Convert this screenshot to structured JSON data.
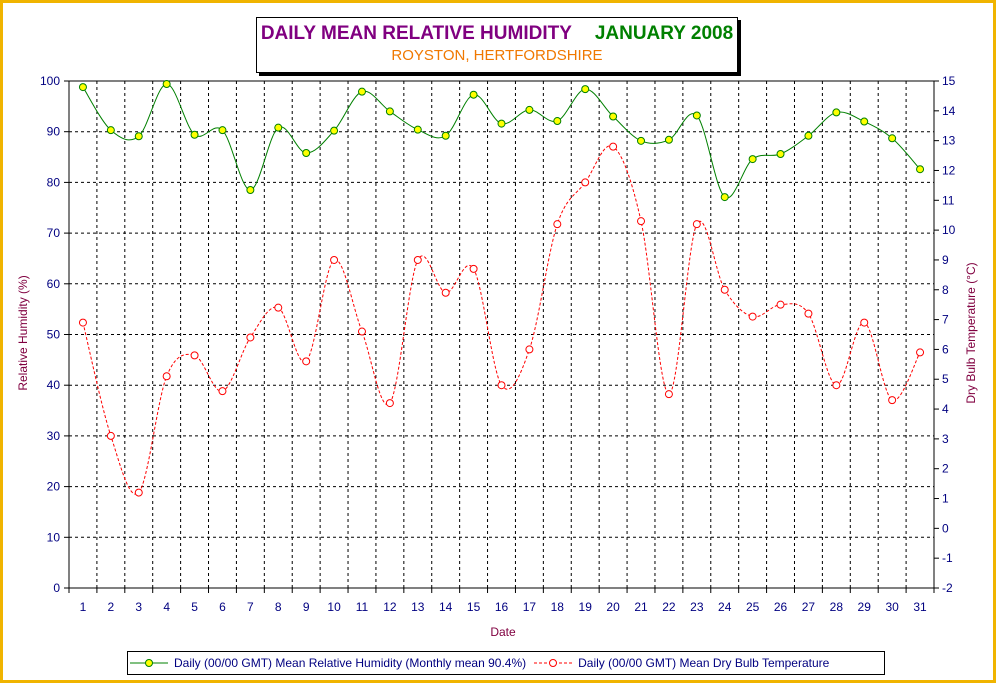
{
  "colors": {
    "frame": "#f0b400",
    "title": "#800080",
    "period": "#008000",
    "subtitle": "#f07800",
    "axis_text": "#000080",
    "axis_title": "#800040",
    "humidity_line": "#008000",
    "humidity_marker": "#ffff00",
    "temperature_line": "#ff0000"
  },
  "chart_data": {
    "type": "line",
    "title": "DAILY MEAN RELATIVE HUMIDITY",
    "title_period": "JANUARY 2008",
    "subtitle": "ROYSTON, HERTFORDSHIRE",
    "xlabel": "Date",
    "ylabel_left": "Relative Humidity (%)",
    "ylabel_right": "Dry Bulb Temperature (°C)",
    "x": [
      1,
      2,
      3,
      4,
      5,
      6,
      7,
      8,
      9,
      10,
      11,
      12,
      13,
      14,
      15,
      16,
      17,
      18,
      19,
      20,
      21,
      22,
      23,
      24,
      25,
      26,
      27,
      28,
      29,
      30,
      31
    ],
    "ylim_left": [
      0,
      100
    ],
    "yticks_left": [
      0,
      10,
      20,
      30,
      40,
      50,
      60,
      70,
      80,
      90,
      100
    ],
    "ylim_right": [
      -2,
      15
    ],
    "yticks_right": [
      -2,
      -1,
      0,
      1,
      2,
      3,
      4,
      5,
      6,
      7,
      8,
      9,
      10,
      11,
      12,
      13,
      14,
      15
    ],
    "grid": true,
    "legend_position": "bottom",
    "series": [
      {
        "name": "Daily (00/00 GMT) Mean Relative Humidity (Monthly mean 90.4%)",
        "axis": "left",
        "line_style": "solid",
        "values": [
          98.8,
          90.3,
          89.1,
          99.4,
          89.4,
          90.3,
          78.5,
          90.8,
          85.8,
          90.2,
          97.9,
          94.0,
          90.4,
          89.2,
          97.3,
          91.6,
          94.3,
          92.1,
          98.4,
          93.0,
          88.2,
          88.4,
          93.2,
          77.1,
          84.6,
          85.6,
          89.2,
          93.8,
          92.0,
          88.7,
          82.6
        ]
      },
      {
        "name": "Daily (00/00 GMT) Mean Dry Bulb Temperature",
        "axis": "right",
        "line_style": "dashed",
        "values": [
          6.9,
          3.1,
          1.2,
          5.1,
          5.8,
          4.6,
          6.4,
          7.4,
          5.6,
          9.0,
          6.6,
          4.2,
          9.0,
          7.9,
          8.7,
          4.8,
          6.0,
          10.2,
          11.6,
          12.8,
          10.3,
          4.5,
          10.2,
          8.0,
          7.1,
          7.5,
          7.2,
          4.8,
          6.9,
          4.3,
          5.9
        ]
      }
    ]
  }
}
